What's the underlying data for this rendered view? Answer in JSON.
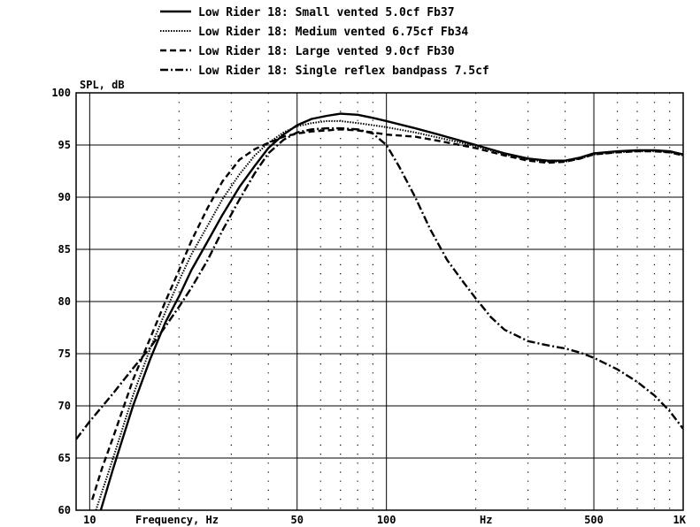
{
  "chart_data": {
    "type": "line",
    "title": "",
    "ylabel": "SPL, dB",
    "xlabel": "Frequency, Hz",
    "x_scale": "log",
    "xlim": [
      9,
      1000
    ],
    "ylim": [
      60,
      100
    ],
    "grid": true,
    "legend_position": "top",
    "y_ticks": [
      {
        "value": 100,
        "label": "100"
      },
      {
        "value": 95,
        "label": "95"
      },
      {
        "value": 90,
        "label": "90"
      },
      {
        "value": 85,
        "label": "85"
      },
      {
        "value": 80,
        "label": "80"
      },
      {
        "value": 75,
        "label": "75"
      },
      {
        "value": 70,
        "label": "70"
      },
      {
        "value": 65,
        "label": "65"
      },
      {
        "value": 60,
        "label": "60"
      }
    ],
    "x_ticks": [
      {
        "value": 10,
        "label": "10"
      },
      {
        "value": 50,
        "label": "50"
      },
      {
        "value": 100,
        "label": "100"
      },
      {
        "value": 500,
        "label": "500"
      },
      {
        "value": 1000,
        "label": "1K"
      }
    ],
    "x_unit_label": "Hz",
    "series": [
      {
        "name": "Low Rider 18: Small vented 5.0cf Fb37",
        "style": "solid",
        "color": "#000000",
        "points": [
          [
            10.9,
            60
          ],
          [
            12,
            64
          ],
          [
            14,
            70
          ],
          [
            16,
            74.5
          ],
          [
            18,
            78
          ],
          [
            20,
            80.5
          ],
          [
            22,
            83
          ],
          [
            25,
            85.8
          ],
          [
            28,
            88.3
          ],
          [
            32,
            91
          ],
          [
            36,
            93
          ],
          [
            40,
            94.7
          ],
          [
            45,
            96
          ],
          [
            50,
            96.9
          ],
          [
            56,
            97.5
          ],
          [
            63,
            97.8
          ],
          [
            70,
            98
          ],
          [
            80,
            97.9
          ],
          [
            90,
            97.6
          ],
          [
            100,
            97.3
          ],
          [
            125,
            96.6
          ],
          [
            150,
            96
          ],
          [
            200,
            95
          ],
          [
            250,
            94.2
          ],
          [
            300,
            93.7
          ],
          [
            350,
            93.5
          ],
          [
            400,
            93.5
          ],
          [
            450,
            93.8
          ],
          [
            500,
            94.2
          ],
          [
            600,
            94.4
          ],
          [
            700,
            94.5
          ],
          [
            800,
            94.5
          ],
          [
            900,
            94.4
          ],
          [
            1000,
            94.1
          ]
        ]
      },
      {
        "name": "Low Rider 18: Medium vented 6.75cf Fb34",
        "style": "dotted",
        "color": "#000000",
        "points": [
          [
            10.5,
            60
          ],
          [
            12,
            65
          ],
          [
            14,
            71
          ],
          [
            16,
            75.5
          ],
          [
            18,
            79
          ],
          [
            20,
            82
          ],
          [
            22,
            84.5
          ],
          [
            25,
            87.3
          ],
          [
            28,
            89.8
          ],
          [
            32,
            92.2
          ],
          [
            36,
            94
          ],
          [
            40,
            95.2
          ],
          [
            45,
            96.2
          ],
          [
            50,
            96.8
          ],
          [
            56,
            97.1
          ],
          [
            63,
            97.3
          ],
          [
            70,
            97.3
          ],
          [
            80,
            97.1
          ],
          [
            90,
            96.9
          ],
          [
            100,
            96.7
          ],
          [
            125,
            96.2
          ],
          [
            150,
            95.7
          ],
          [
            200,
            94.9
          ],
          [
            250,
            94.1
          ],
          [
            300,
            93.6
          ],
          [
            350,
            93.4
          ],
          [
            400,
            93.4
          ],
          [
            450,
            93.7
          ],
          [
            500,
            94.1
          ],
          [
            600,
            94.3
          ],
          [
            700,
            94.4
          ],
          [
            800,
            94.4
          ],
          [
            900,
            94.3
          ],
          [
            1000,
            94
          ]
        ]
      },
      {
        "name": "Low Rider 18: Large vented 9.0cf Fb30",
        "style": "dashed",
        "color": "#000000",
        "points": [
          [
            10.2,
            61
          ],
          [
            11,
            64
          ],
          [
            12,
            67
          ],
          [
            14,
            72.5
          ],
          [
            16,
            76.5
          ],
          [
            18,
            80
          ],
          [
            20,
            83
          ],
          [
            22,
            85.8
          ],
          [
            25,
            89
          ],
          [
            28,
            91.5
          ],
          [
            32,
            93.6
          ],
          [
            36,
            94.6
          ],
          [
            40,
            95.2
          ],
          [
            45,
            95.8
          ],
          [
            50,
            96.1
          ],
          [
            56,
            96.3
          ],
          [
            63,
            96.4
          ],
          [
            70,
            96.5
          ],
          [
            80,
            96.4
          ],
          [
            90,
            96.2
          ],
          [
            100,
            96
          ],
          [
            125,
            95.8
          ],
          [
            150,
            95.4
          ],
          [
            200,
            94.7
          ],
          [
            250,
            94
          ],
          [
            300,
            93.5
          ],
          [
            350,
            93.3
          ],
          [
            400,
            93.4
          ],
          [
            450,
            93.7
          ],
          [
            500,
            94.1
          ],
          [
            600,
            94.3
          ],
          [
            700,
            94.4
          ],
          [
            800,
            94.4
          ],
          [
            900,
            94.3
          ],
          [
            1000,
            94
          ]
        ]
      },
      {
        "name": "Low Rider 18: Single reflex bandpass 7.5cf",
        "style": "dashdot",
        "color": "#000000",
        "points": [
          [
            9,
            66.8
          ],
          [
            10,
            68.5
          ],
          [
            12,
            71.2
          ],
          [
            14,
            73.6
          ],
          [
            16,
            75.6
          ],
          [
            18,
            77.6
          ],
          [
            20,
            79.5
          ],
          [
            22,
            81.3
          ],
          [
            25,
            84
          ],
          [
            28,
            86.8
          ],
          [
            32,
            89.8
          ],
          [
            36,
            92.3
          ],
          [
            40,
            94.2
          ],
          [
            45,
            95.5
          ],
          [
            50,
            96.2
          ],
          [
            56,
            96.5
          ],
          [
            63,
            96.6
          ],
          [
            70,
            96.6
          ],
          [
            80,
            96.5
          ],
          [
            90,
            96.1
          ],
          [
            100,
            95
          ],
          [
            110,
            93
          ],
          [
            125,
            90
          ],
          [
            140,
            87
          ],
          [
            160,
            84
          ],
          [
            180,
            82
          ],
          [
            200,
            80.3
          ],
          [
            225,
            78.5
          ],
          [
            250,
            77.3
          ],
          [
            300,
            76.2
          ],
          [
            350,
            75.8
          ],
          [
            400,
            75.5
          ],
          [
            450,
            75.1
          ],
          [
            500,
            74.6
          ],
          [
            600,
            73.5
          ],
          [
            700,
            72.3
          ],
          [
            800,
            71
          ],
          [
            900,
            69.5
          ],
          [
            1000,
            67.8
          ]
        ]
      }
    ]
  }
}
